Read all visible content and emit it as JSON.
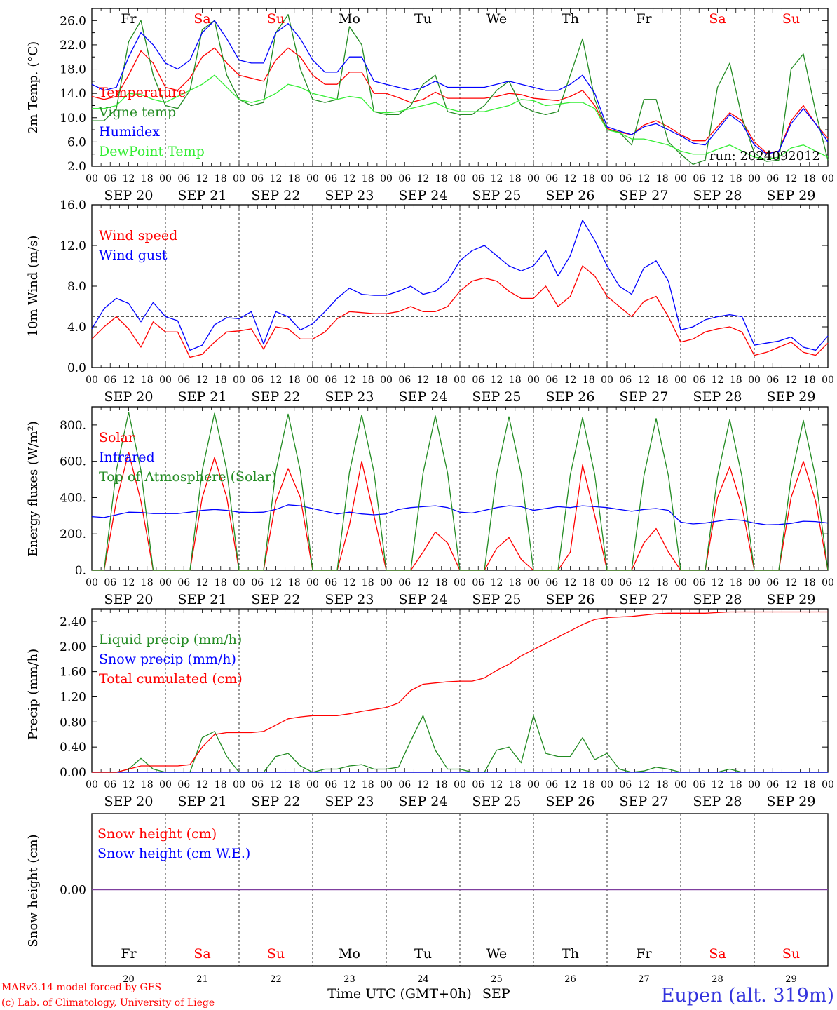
{
  "chart_data": [
    {
      "type": "line",
      "panel": "temperature",
      "ylabel": "2m Temp. (°C)",
      "yticks": [
        "26.0",
        "22.0",
        "18.0",
        "14.0",
        "10.0",
        "6.0",
        "2.0"
      ],
      "ylim": [
        2,
        28
      ],
      "run_label": "run: 2024092012",
      "series": [
        {
          "name": "Temperature",
          "color": "#ff0000",
          "values": [
            13.5,
            13,
            13.5,
            17,
            21,
            19,
            15,
            14.5,
            16.5,
            20,
            21.5,
            19,
            17,
            16.5,
            16,
            19.5,
            21.5,
            20,
            17,
            15.5,
            15.5,
            17.5,
            17.5,
            14,
            14,
            13.3,
            12.5,
            13,
            14.2,
            13.2,
            13.2,
            13.2,
            13.2,
            13.5,
            14,
            13.8,
            13.2,
            13,
            12.8,
            13.5,
            14.5,
            12,
            8.2,
            7.6,
            7.2,
            8.8,
            9.5,
            8.5,
            7.2,
            6.2,
            6.2,
            8.5,
            10.8,
            9.5,
            6,
            4.2,
            4.5,
            9.5,
            12,
            9,
            6.6
          ]
        },
        {
          "name": "Vigne temp",
          "color": "#228b22",
          "values": [
            9.5,
            9.5,
            11.5,
            22.5,
            26,
            17,
            12,
            11.5,
            14.5,
            24.5,
            26,
            17,
            13,
            12,
            12.5,
            24,
            27,
            18,
            13,
            12.5,
            13,
            25,
            22,
            11,
            10.5,
            10.5,
            12,
            15.5,
            17,
            11,
            10.5,
            10.5,
            12,
            14.5,
            16,
            12,
            11,
            10.5,
            11,
            17,
            23,
            13,
            8,
            7.6,
            5.5,
            13,
            13,
            6,
            4,
            2.3,
            3,
            15,
            19,
            10,
            4.2,
            2.8,
            3,
            18,
            20.5,
            11,
            3
          ]
        },
        {
          "name": "Humidex",
          "color": "#0000ff",
          "values": [
            15.5,
            14.5,
            15,
            20,
            24,
            22,
            19,
            18,
            19.5,
            24,
            26,
            23,
            19.5,
            19,
            19,
            24,
            25.5,
            23,
            19.5,
            17.5,
            17.5,
            20,
            20,
            16,
            15.5,
            15,
            14.5,
            15,
            16,
            15,
            15,
            15,
            15,
            15.5,
            16,
            15.5,
            15,
            14.5,
            14.5,
            15.5,
            17,
            14,
            8.5,
            7.8,
            7.2,
            8.5,
            9,
            8,
            7,
            5.8,
            5.5,
            8,
            10.5,
            9,
            5.5,
            4,
            4.5,
            9,
            11.5,
            9,
            6
          ]
        },
        {
          "name": "DewPoint Temp",
          "color": "#33ee33",
          "values": [
            11.5,
            11.5,
            12,
            14,
            13.8,
            13,
            12.5,
            13.5,
            14.5,
            15.5,
            17,
            15,
            13,
            12.5,
            13,
            14,
            15.5,
            15,
            14,
            13.5,
            13,
            13.5,
            13.2,
            11,
            10.8,
            11,
            11.5,
            12,
            12.5,
            11.5,
            11,
            11,
            11,
            11.5,
            12,
            13,
            12.8,
            12,
            12.2,
            12.5,
            12.5,
            11.5,
            8,
            7.5,
            6.5,
            6.5,
            6,
            5.5,
            4.5,
            4,
            4,
            4.8,
            5.5,
            4.5,
            3.5,
            3.2,
            3.5,
            5,
            5.5,
            4.5,
            3.5
          ]
        }
      ]
    },
    {
      "type": "line",
      "panel": "wind",
      "ylabel": "10m Wind (m/s)",
      "yticks": [
        "16.0",
        "12.0",
        "8.0",
        "4.0",
        "0.0"
      ],
      "ylim": [
        0,
        16
      ],
      "reference_line": 5,
      "series": [
        {
          "name": "Wind speed",
          "color": "#ff0000",
          "values": [
            2.8,
            4,
            5,
            3.8,
            2,
            4.5,
            3.5,
            3.5,
            1,
            1.3,
            2.5,
            3.5,
            3.6,
            3.8,
            1.8,
            4,
            3.8,
            2.8,
            2.8,
            3.5,
            4.8,
            5.5,
            5.4,
            5.3,
            5.3,
            5.5,
            6,
            5.5,
            5.5,
            6,
            7.5,
            8.5,
            8.8,
            8.5,
            7.5,
            6.8,
            6.8,
            8,
            6,
            7,
            10,
            9,
            7,
            6,
            5,
            6.5,
            7,
            5,
            2.5,
            2.8,
            3.5,
            3.8,
            4,
            3.5,
            1.2,
            1.5,
            2,
            2.5,
            1.5,
            1.2,
            2.4
          ]
        },
        {
          "name": "Wind gust",
          "color": "#0000ff",
          "values": [
            3.8,
            5.8,
            6.8,
            6.3,
            4.5,
            6.4,
            5,
            4.6,
            1.7,
            2.2,
            4.2,
            4.9,
            4.8,
            5.5,
            2.3,
            5.5,
            5,
            3.7,
            4.3,
            5.5,
            6.8,
            7.8,
            7.2,
            7.1,
            7.1,
            7.5,
            8,
            7.2,
            7.5,
            8.5,
            10.5,
            11.5,
            12,
            11,
            10,
            9.5,
            10,
            11.5,
            9,
            11,
            14.5,
            12.5,
            10,
            8,
            7.2,
            9.8,
            10.5,
            8.5,
            3.7,
            4,
            4.7,
            5,
            5.2,
            5,
            2.2,
            2.4,
            2.6,
            3,
            2,
            1.7,
            3.1
          ]
        }
      ]
    },
    {
      "type": "line",
      "panel": "energy",
      "ylabel": "Energy fluxes (W/m²)",
      "yticks": [
        "800.",
        "600.",
        "400.",
        "200.",
        "0."
      ],
      "ylim": [
        0,
        900
      ],
      "series": [
        {
          "name": "Solar",
          "color": "#ff0000",
          "values": [
            0,
            0,
            380,
            650,
            380,
            0,
            0,
            0,
            0,
            400,
            620,
            400,
            0,
            0,
            0,
            380,
            560,
            400,
            0,
            0,
            0,
            250,
            600,
            300,
            0,
            0,
            0,
            100,
            210,
            150,
            0,
            0,
            0,
            120,
            180,
            60,
            0,
            0,
            0,
            100,
            580,
            300,
            0,
            0,
            0,
            150,
            230,
            100,
            0,
            0,
            0,
            400,
            570,
            350,
            0,
            0,
            0,
            400,
            600,
            380,
            0
          ]
        },
        {
          "name": "Infrared",
          "color": "#0000ff",
          "values": [
            295,
            290,
            305,
            320,
            318,
            312,
            312,
            312,
            320,
            330,
            335,
            330,
            320,
            318,
            320,
            335,
            360,
            355,
            340,
            325,
            310,
            320,
            310,
            305,
            310,
            335,
            345,
            350,
            355,
            345,
            320,
            315,
            330,
            345,
            355,
            350,
            330,
            340,
            350,
            345,
            355,
            350,
            345,
            335,
            325,
            335,
            340,
            330,
            265,
            255,
            260,
            270,
            280,
            275,
            260,
            250,
            252,
            258,
            270,
            268,
            260
          ]
        },
        {
          "name": "Top of Atmosphere (Solar)",
          "color": "#228b22",
          "values": [
            0,
            0,
            550,
            870,
            550,
            0,
            0,
            0,
            0,
            550,
            865,
            550,
            0,
            0,
            0,
            545,
            860,
            545,
            0,
            0,
            0,
            540,
            855,
            540,
            0,
            0,
            0,
            535,
            850,
            535,
            0,
            0,
            0,
            530,
            845,
            530,
            0,
            0,
            0,
            525,
            840,
            525,
            0,
            0,
            0,
            520,
            835,
            520,
            0,
            0,
            0,
            515,
            830,
            515,
            0,
            0,
            0,
            510,
            825,
            510,
            0
          ]
        }
      ]
    },
    {
      "type": "line",
      "panel": "precip",
      "ylabel": "Precip (mm/h)",
      "yticks": [
        "2.40",
        "2.00",
        "1.60",
        "1.20",
        "0.80",
        "0.40",
        "0.00"
      ],
      "ylim": [
        0,
        2.6
      ],
      "series": [
        {
          "name": "Liquid precip (mm/h)",
          "color": "#228b22",
          "values": [
            0,
            0,
            0,
            0.05,
            0.22,
            0.05,
            0,
            0,
            0,
            0.55,
            0.65,
            0.25,
            0,
            0,
            0,
            0.25,
            0.3,
            0.1,
            0,
            0.05,
            0.05,
            0.1,
            0.12,
            0.05,
            0.05,
            0.08,
            0.5,
            0.9,
            0.35,
            0.05,
            0.05,
            0,
            0,
            0.35,
            0.4,
            0.15,
            0.9,
            0.3,
            0.25,
            0.25,
            0.55,
            0.2,
            0.3,
            0.05,
            0,
            0.02,
            0.08,
            0.05,
            0,
            0,
            0,
            0,
            0.05,
            0,
            0,
            0,
            0,
            0,
            0,
            0,
            0
          ]
        },
        {
          "name": "Snow precip (mm/h)",
          "color": "#0000ff",
          "values": [
            0,
            0,
            0,
            0,
            0,
            0,
            0,
            0,
            0,
            0,
            0,
            0,
            0,
            0,
            0,
            0,
            0,
            0,
            0,
            0,
            0,
            0,
            0,
            0,
            0,
            0,
            0,
            0,
            0,
            0,
            0,
            0,
            0,
            0,
            0,
            0,
            0,
            0,
            0,
            0,
            0,
            0,
            0,
            0,
            0,
            0,
            0,
            0,
            0,
            0,
            0,
            0,
            0,
            0,
            0,
            0,
            0,
            0,
            0,
            0,
            0
          ]
        },
        {
          "name": "Total cumulated (cm)",
          "color": "#ff0000",
          "values": [
            0,
            0,
            0,
            0.05,
            0.1,
            0.1,
            0.1,
            0.1,
            0.12,
            0.4,
            0.6,
            0.63,
            0.63,
            0.63,
            0.65,
            0.75,
            0.85,
            0.88,
            0.9,
            0.9,
            0.9,
            0.93,
            0.97,
            1.0,
            1.03,
            1.1,
            1.3,
            1.4,
            1.42,
            1.44,
            1.45,
            1.45,
            1.5,
            1.62,
            1.72,
            1.85,
            1.95,
            2.05,
            2.15,
            2.25,
            2.35,
            2.43,
            2.46,
            2.47,
            2.48,
            2.5,
            2.52,
            2.53,
            2.53,
            2.53,
            2.53,
            2.54,
            2.55,
            2.55,
            2.55,
            2.55,
            2.55,
            2.55,
            2.55,
            2.55,
            2.55
          ]
        }
      ]
    },
    {
      "type": "line",
      "panel": "snow",
      "ylabel": "Snow height (cm)",
      "yticks": [
        "0.00"
      ],
      "ylim": [
        -1,
        1
      ],
      "series": [
        {
          "name": "Snow height (cm)",
          "color": "#ff0000",
          "values": [
            0,
            0
          ]
        },
        {
          "name": "Snow height (cm W.E.)",
          "color": "#0000ff",
          "values": [
            0,
            0
          ]
        }
      ]
    }
  ],
  "x_axis": {
    "hour_ticks": [
      "00",
      "06",
      "12",
      "18"
    ],
    "dates": [
      "SEP 20",
      "SEP 21",
      "SEP 22",
      "SEP 23",
      "SEP 24",
      "SEP 25",
      "SEP 26",
      "SEP 27",
      "SEP 28",
      "SEP 29"
    ],
    "days": [
      {
        "label": "Fr",
        "weekend": false
      },
      {
        "label": "Sa",
        "weekend": true
      },
      {
        "label": "Su",
        "weekend": true
      },
      {
        "label": "Mo",
        "weekend": false
      },
      {
        "label": "Tu",
        "weekend": false
      },
      {
        "label": "We",
        "weekend": false
      },
      {
        "label": "Th",
        "weekend": false
      },
      {
        "label": "Fr",
        "weekend": false
      },
      {
        "label": "Sa",
        "weekend": true
      },
      {
        "label": "Su",
        "weekend": true
      }
    ],
    "day_numbers": [
      "20",
      "21",
      "22",
      "23",
      "24",
      "25",
      "26",
      "27",
      "28",
      "29"
    ],
    "bottom_label": "Time UTC (GMT+0h)",
    "month_label": "SEP"
  },
  "footer": {
    "credit_line_1": "MARv3.14 model forced by GFS",
    "credit_line_2": "(c) Lab. of Climatology, University of Liege",
    "station": "Eupen (alt. 319m)"
  },
  "colors": {
    "weekend": "#ff0000",
    "weekday": "#000000",
    "reference": "#555555",
    "snow_zero": "#7f3f9f"
  }
}
